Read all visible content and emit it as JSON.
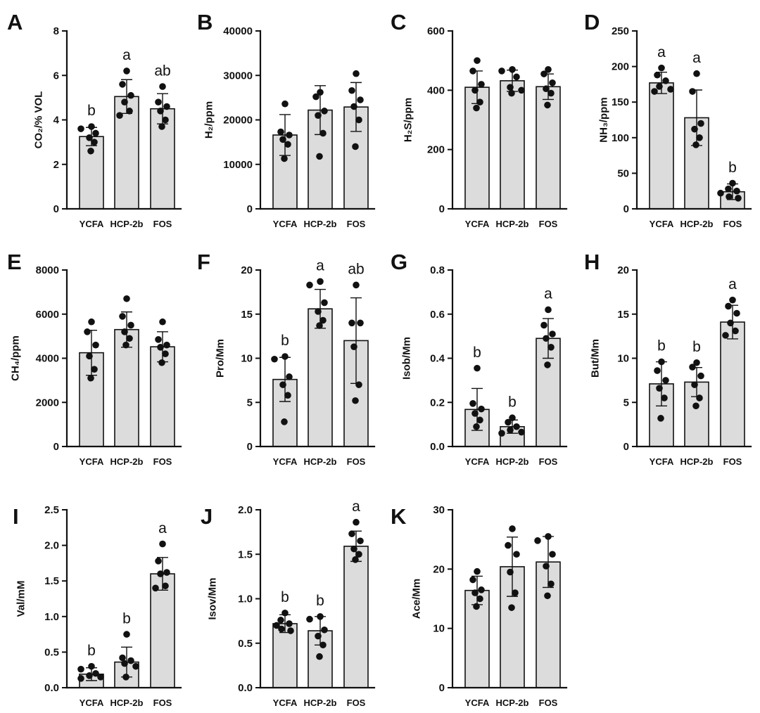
{
  "colors": {
    "bar_fill": "#dcdcdc",
    "ink": "#111111"
  },
  "chart_data": [
    {
      "panel": "A",
      "type": "bar",
      "ylabel": "CO₂/% VOL",
      "ylim": [
        0,
        8
      ],
      "yticks": [
        "0",
        "2",
        "4",
        "6",
        "8"
      ],
      "categories": [
        "YCFA",
        "HCP-2b",
        "FOS"
      ],
      "means": [
        3.25,
        5.05,
        4.5
      ],
      "sd": [
        0.41,
        0.76,
        0.68
      ],
      "points": [
        [
          3.7,
          3.6,
          3.4,
          3.2,
          3.0,
          2.6
        ],
        [
          6.2,
          5.6,
          5.1,
          4.8,
          4.4,
          4.2
        ],
        [
          5.5,
          4.8,
          4.6,
          4.4,
          4.0,
          3.7
        ]
      ],
      "letters": [
        "b",
        "a",
        "ab"
      ]
    },
    {
      "panel": "B",
      "type": "bar",
      "ylabel": "H₂/ppm",
      "ylim": [
        0,
        40000
      ],
      "yticks": [
        "0",
        "10000",
        "20000",
        "30000",
        "40000"
      ],
      "categories": [
        "YCFA",
        "HCP-2b",
        "FOS"
      ],
      "means": [
        16600,
        22200,
        22900
      ],
      "sd": [
        4600,
        5500,
        5500
      ],
      "points": [
        [
          23600,
          17300,
          16600,
          15600,
          14500,
          11300
        ],
        [
          26200,
          25200,
          22000,
          21000,
          17000,
          11800
        ],
        [
          30400,
          26600,
          24500,
          23000,
          20000,
          14000
        ]
      ]
    },
    {
      "panel": "C",
      "type": "bar",
      "ylabel": "H₂S/ppm",
      "ylim": [
        0,
        600
      ],
      "yticks": [
        "0",
        "200",
        "400",
        "600"
      ],
      "categories": [
        "YCFA",
        "HCP-2b",
        "FOS"
      ],
      "means": [
        410,
        432,
        412
      ],
      "sd": [
        55,
        36,
        43
      ],
      "points": [
        [
          500,
          465,
          420,
          400,
          360,
          340
        ],
        [
          470,
          465,
          445,
          410,
          400,
          390
        ],
        [
          470,
          455,
          425,
          405,
          390,
          350
        ]
      ]
    },
    {
      "panel": "D",
      "type": "bar",
      "ylabel": "NH₃/ppm",
      "ylim": [
        0,
        250
      ],
      "yticks": [
        "0",
        "50",
        "100",
        "150",
        "200",
        "250"
      ],
      "categories": [
        "YCFA",
        "HCP-2b",
        "FOS"
      ],
      "means": [
        177,
        128,
        24
      ],
      "sd": [
        15,
        39,
        11
      ],
      "points": [
        [
          198,
          188,
          180,
          172,
          168,
          165
        ],
        [
          190,
          165,
          120,
          112,
          100,
          90
        ],
        [
          36,
          28,
          25,
          22,
          17,
          15
        ]
      ],
      "letters": [
        "a",
        "a",
        "b"
      ]
    },
    {
      "panel": "E",
      "type": "bar",
      "ylabel": "CH₄/ppm",
      "ylim": [
        0,
        8000
      ],
      "yticks": [
        "0",
        "2000",
        "4000",
        "6000",
        "8000"
      ],
      "categories": [
        "YCFA",
        "HCP-2b",
        "FOS"
      ],
      "means": [
        4250,
        5300,
        4520
      ],
      "sd": [
        1020,
        800,
        680
      ],
      "points": [
        [
          5650,
          5200,
          4600,
          4100,
          3500,
          3100
        ],
        [
          6700,
          5900,
          5500,
          5200,
          4900,
          4600
        ],
        [
          5650,
          4850,
          4600,
          4500,
          4200,
          3800
        ]
      ]
    },
    {
      "panel": "F",
      "type": "bar",
      "ylabel": "Pro/Mm",
      "ylim": [
        0,
        20
      ],
      "yticks": [
        "0",
        "5",
        "10",
        "15",
        "20"
      ],
      "categories": [
        "YCFA",
        "HCP-2b",
        "FOS"
      ],
      "means": [
        7.6,
        15.6,
        12.0
      ],
      "sd": [
        2.5,
        2.2,
        4.85
      ],
      "points": [
        [
          10.2,
          9.9,
          7.9,
          7.0,
          5.8,
          2.8
        ],
        [
          18.7,
          18.3,
          16.3,
          15.3,
          14.3,
          13.7
        ],
        [
          18.3,
          14.0,
          14.0,
          11.3,
          7.0,
          5.2
        ]
      ],
      "letters": [
        "b",
        "a",
        "ab"
      ]
    },
    {
      "panel": "G",
      "type": "bar",
      "ylabel": "Isob/Mm",
      "ylim": [
        0,
        0.8
      ],
      "yticks": [
        "0.0",
        "0.2",
        "0.4",
        "0.6",
        "0.8"
      ],
      "categories": [
        "YCFA",
        "HCP-2b",
        "FOS"
      ],
      "means": [
        0.168,
        0.09,
        0.49
      ],
      "sd": [
        0.095,
        0.03,
        0.09
      ],
      "points": [
        [
          0.355,
          0.195,
          0.17,
          0.15,
          0.12,
          0.09
        ],
        [
          0.13,
          0.11,
          0.09,
          0.075,
          0.065,
          0.06
        ],
        [
          0.62,
          0.55,
          0.51,
          0.49,
          0.45,
          0.37
        ]
      ],
      "letters": [
        "b",
        "b",
        "a"
      ]
    },
    {
      "panel": "H",
      "type": "bar",
      "ylabel": "But/Mm",
      "ylim": [
        0,
        20
      ],
      "yticks": [
        "0",
        "5",
        "10",
        "15",
        "20"
      ],
      "categories": [
        "YCFA",
        "HCP-2b",
        "FOS"
      ],
      "means": [
        7.1,
        7.3,
        14.1
      ],
      "sd": [
        2.5,
        1.65,
        1.9
      ],
      "points": [
        [
          9.6,
          8.6,
          7.5,
          6.6,
          5.5,
          3.2
        ],
        [
          9.5,
          9.0,
          8.0,
          7.0,
          5.5,
          4.6
        ],
        [
          16.6,
          15.9,
          15.1,
          14.0,
          13.1,
          12.6
        ]
      ],
      "letters": [
        "b",
        "b",
        "a"
      ]
    },
    {
      "panel": "I",
      "type": "bar",
      "ylabel": "Val/mM",
      "ylim": [
        0,
        2.5
      ],
      "yticks": [
        "0.0",
        "0.5",
        "1.0",
        "1.5",
        "2.0",
        "2.5"
      ],
      "categories": [
        "YCFA",
        "HCP-2b",
        "FOS"
      ],
      "means": [
        0.19,
        0.36,
        1.6
      ],
      "sd": [
        0.09,
        0.21,
        0.23
      ],
      "points": [
        [
          0.3,
          0.26,
          0.2,
          0.17,
          0.15,
          0.13
        ],
        [
          0.75,
          0.42,
          0.38,
          0.34,
          0.3,
          0.15
        ],
        [
          2.02,
          1.78,
          1.62,
          1.6,
          1.43,
          1.4
        ]
      ],
      "letters": [
        "b",
        "b",
        "a"
      ]
    },
    {
      "panel": "J",
      "type": "bar",
      "ylabel": "Isov/Mm",
      "ylim": [
        0,
        2.0
      ],
      "yticks": [
        "0.0",
        "0.5",
        "1.0",
        "1.5",
        "2.0"
      ],
      "categories": [
        "YCFA",
        "HCP-2b",
        "FOS"
      ],
      "means": [
        0.72,
        0.64,
        1.59
      ],
      "sd": [
        0.1,
        0.16,
        0.17
      ],
      "points": [
        [
          0.84,
          0.76,
          0.72,
          0.7,
          0.66,
          0.64
        ],
        [
          0.8,
          0.77,
          0.65,
          0.58,
          0.48,
          0.35
        ],
        [
          1.86,
          1.73,
          1.65,
          1.56,
          1.5,
          1.44
        ]
      ],
      "letters": [
        "b",
        "b",
        "a"
      ]
    },
    {
      "panel": "K",
      "type": "bar",
      "ylabel": "Ace/Mm",
      "ylim": [
        0,
        30
      ],
      "yticks": [
        "0",
        "10",
        "20",
        "30"
      ],
      "categories": [
        "YCFA",
        "HCP-2b",
        "FOS"
      ],
      "means": [
        16.4,
        20.4,
        21.2
      ],
      "sd": [
        2.4,
        5.0,
        4.3
      ],
      "points": [
        [
          19.6,
          18.2,
          16.5,
          16.0,
          15.0,
          13.7
        ],
        [
          26.8,
          24.0,
          22.5,
          19.5,
          16.0,
          13.5
        ],
        [
          25.5,
          24.8,
          22.5,
          20.5,
          17.5,
          15.5
        ]
      ]
    }
  ]
}
